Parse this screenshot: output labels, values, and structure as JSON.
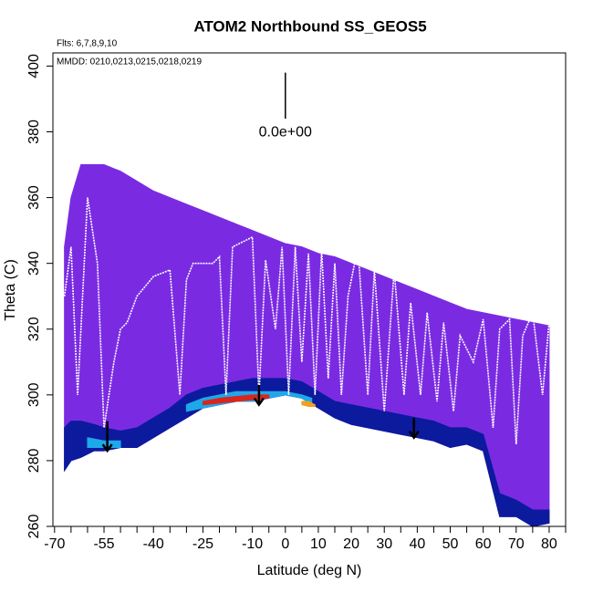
{
  "chart_data": {
    "type": "curtain",
    "title": "ATOM2 Northbound SS_GEOS5",
    "subtitle": "Flts: 6,7,8,9,10",
    "annotation": "MMDD: 0210,0213,0215,0218,0219",
    "x_label": "Latitude (deg N)",
    "y_label": "Theta (C)",
    "xlim": [
      -70.5,
      85
    ],
    "ylim": [
      260,
      404
    ],
    "xticks": [
      -70,
      -55,
      -40,
      -25,
      -10,
      0,
      10,
      20,
      30,
      40,
      50,
      60,
      70,
      80
    ],
    "xminorticks": [
      -65,
      -60,
      -50,
      -45,
      -35,
      -30,
      -20,
      -15,
      -5,
      5,
      15,
      25,
      35,
      45,
      55,
      65,
      75,
      85
    ],
    "yticks": [
      260,
      280,
      300,
      320,
      340,
      360,
      380,
      400
    ],
    "layers": [
      {
        "color": "#7a2be2",
        "x": [
          -67,
          -65,
          -62,
          -58,
          -55,
          -50,
          -45,
          -40,
          -35,
          -30,
          -25,
          -20,
          -15,
          -10,
          -5,
          0,
          5,
          10,
          15,
          20,
          25,
          30,
          35,
          40,
          45,
          50,
          55,
          60,
          65,
          70,
          75,
          80
        ],
        "upper": [
          345,
          360,
          370,
          370,
          370,
          368,
          365,
          362,
          360,
          358,
          356,
          354,
          352,
          350,
          348,
          346,
          345,
          343,
          342,
          340,
          338,
          336,
          334,
          332,
          330,
          328,
          326,
          325,
          324,
          323,
          322,
          321
        ],
        "lower": [
          277,
          280,
          281,
          283,
          283,
          284,
          284,
          287,
          290,
          293,
          296,
          297,
          298,
          298,
          299,
          300,
          299,
          296,
          293,
          291,
          290,
          289,
          288,
          287,
          286,
          284,
          285,
          283,
          263,
          263,
          260,
          261
        ]
      },
      {
        "color": "#0c1a9e",
        "x": [
          -67,
          -65,
          -62,
          -58,
          -55,
          -50,
          -45,
          -40,
          -35,
          -30,
          -25,
          -20,
          -15,
          -10,
          -5,
          0,
          5,
          10,
          15,
          20,
          25,
          30,
          35,
          40,
          45,
          50,
          55,
          60,
          65,
          70,
          75,
          80
        ],
        "upper": [
          290,
          292,
          292,
          291,
          290,
          289,
          290,
          293,
          296,
          300,
          302,
          303,
          304,
          305,
          305,
          305,
          304,
          301,
          298,
          297,
          296,
          295,
          294,
          293,
          292,
          290,
          290,
          288,
          270,
          268,
          265,
          265
        ],
        "lower": [
          277,
          280,
          281,
          283,
          283,
          284,
          284,
          287,
          290,
          293,
          296,
          297,
          298,
          298,
          299,
          300,
          299,
          296,
          293,
          291,
          290,
          289,
          288,
          287,
          286,
          284,
          285,
          283,
          263,
          263,
          260,
          261
        ]
      },
      {
        "color": "#1ea8e8",
        "x": [
          -30,
          -25,
          -20,
          -15,
          -10,
          -5,
          0,
          5,
          8
        ],
        "upper": [
          297,
          299,
          300,
          301,
          301,
          301,
          301,
          300,
          299
        ],
        "lower": [
          295,
          296,
          297,
          298,
          298,
          299,
          300,
          299,
          297
        ]
      },
      {
        "color": "#1ea8e8",
        "x": [
          -60,
          -55,
          -50
        ],
        "upper": [
          287,
          286,
          286
        ],
        "lower": [
          284,
          284,
          284
        ]
      },
      {
        "color": "#d8261e",
        "x": [
          -25,
          -20,
          -15,
          -10,
          -5
        ],
        "upper": [
          298,
          299,
          299.5,
          300,
          300
        ],
        "lower": [
          297,
          297.5,
          298,
          298.5,
          299
        ]
      },
      {
        "color": "#f0a020",
        "x": [
          5,
          7,
          9
        ],
        "upper": [
          298,
          298,
          297
        ],
        "lower": [
          297,
          296.5,
          296.5
        ]
      }
    ],
    "track": {
      "color": "#ffffff",
      "x": [
        -67,
        -65,
        -63,
        -60,
        -57,
        -55,
        -52,
        -50,
        -48,
        -45,
        -40,
        -35,
        -32,
        -30,
        -28,
        -22,
        -20,
        -18,
        -16,
        -12,
        -10,
        -8,
        -6,
        -3,
        -1,
        1,
        3,
        5,
        7,
        9,
        11,
        13,
        15,
        17,
        19,
        22,
        25,
        27,
        30,
        33,
        36,
        38,
        41,
        43,
        46,
        48,
        51,
        53,
        57,
        60,
        63,
        65,
        68,
        70,
        72,
        75,
        78,
        80
      ],
      "y": [
        330,
        345,
        300,
        360,
        340,
        290,
        310,
        320,
        322,
        330,
        336,
        338,
        300,
        335,
        340,
        340,
        342,
        300,
        345,
        347,
        348,
        300,
        341,
        320,
        345,
        300,
        345,
        310,
        343,
        300,
        344,
        305,
        340,
        300,
        330,
        345,
        300,
        338,
        295,
        338,
        300,
        328,
        300,
        325,
        298,
        322,
        295,
        318,
        310,
        323,
        290,
        320,
        323,
        285,
        318,
        325,
        300,
        322
      ]
    },
    "arrows": [
      {
        "x": -54,
        "y_from": 292,
        "y_to": 283
      },
      {
        "x": -8,
        "y_from": 303,
        "y_to": 297
      },
      {
        "x": 39,
        "y_from": 293,
        "y_to": 287
      }
    ],
    "scale_bar": {
      "x": 0,
      "y_from": 398,
      "y_to": 384,
      "label": "0.0e+00"
    }
  }
}
